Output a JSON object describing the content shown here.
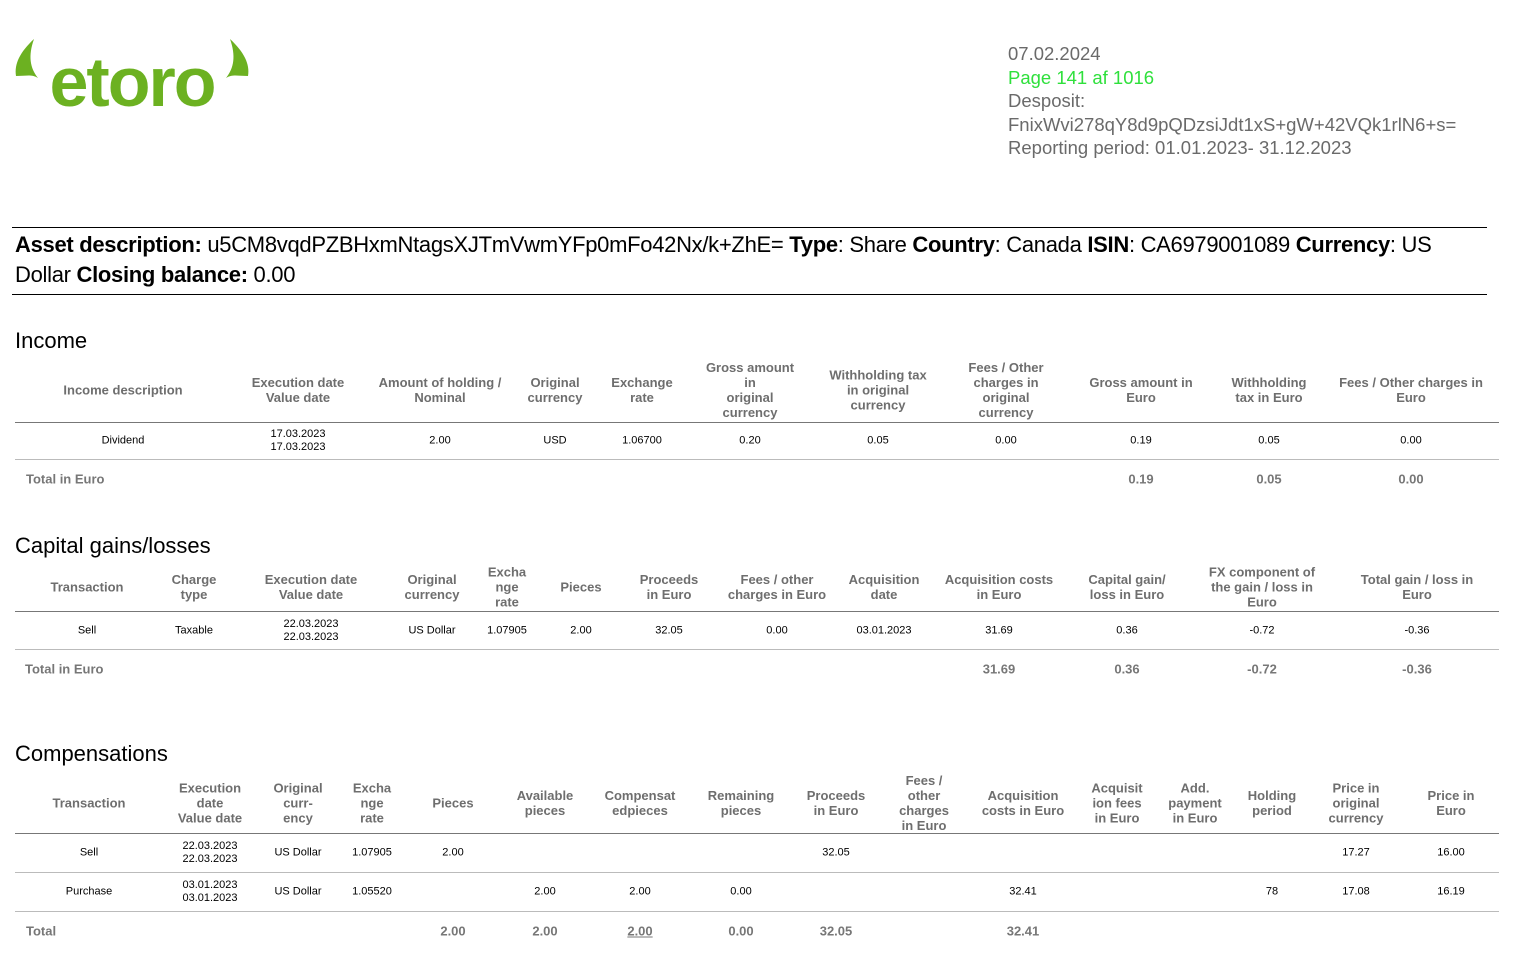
{
  "logo": {
    "text": "eToro",
    "color": "#6cb121"
  },
  "header": {
    "date": "07.02.2024",
    "page": "Page 141 af 1016",
    "page_color": "#2fe03c",
    "deposit_label": "Desposit:",
    "deposit_value": "FnixWvi278qY8d9pQDzsiJdt1xS+gW+42VQk1rlN6+s=",
    "reporting_period": "Reporting period: 01.01.2023- 31.12.2023"
  },
  "asset": {
    "desc_label": "Asset description:",
    "desc_value": " u5CM8vqdPZBHxmNtagsXJTmVwmYFp0mFo42Nx/k+ZhE= ",
    "type_label": "Type",
    "type_value": ": Share ",
    "country_label": "Country",
    "country_value": ": Canada ",
    "isin_label": "ISIN",
    "isin_value": ": CA6979001089 ",
    "currency_label": "Currency",
    "currency_value": ": US Dollar ",
    "closing_label": "Closing balance:",
    "closing_value": " 0.00"
  },
  "income": {
    "title": "Income",
    "headers": [
      "Income description",
      "Execution date\nValue date",
      "Amount of holding /\nNominal",
      "Original\ncurrency",
      "Exchange\nrate",
      "Gross amount\nin\noriginal\ncurrency",
      "Withholding tax\nin original\ncurrency",
      "Fees / Other\ncharges in\noriginal\ncurrency",
      "Gross amount in\nEuro",
      "Withholding\ntax in Euro",
      "Fees / Other charges in\nEuro"
    ],
    "rows": [
      [
        "Dividend",
        "17.03.2023\n17.03.2023",
        "2.00",
        "USD",
        "1.06700",
        "0.20",
        "0.05",
        "0.00",
        "0.19",
        "0.05",
        "0.00"
      ]
    ],
    "total": [
      "Total in Euro",
      "",
      "",
      "",
      "",
      "",
      "",
      "",
      "0.19",
      "0.05",
      "0.00"
    ]
  },
  "capital": {
    "title": "Capital gains/losses",
    "headers": [
      "Transaction",
      "Charge\ntype",
      "Execution date\nValue date",
      "Original\ncurrency",
      "Excha\nnge\nrate",
      "Pieces",
      "Proceeds\nin Euro",
      "Fees / other\ncharges in Euro",
      "Acquisition\ndate",
      "Acquisition costs\nin Euro",
      "Capital gain/\nloss in Euro",
      "FX component of\nthe gain / loss in\nEuro",
      "Total gain / loss in\nEuro"
    ],
    "rows": [
      [
        "Sell",
        "Taxable",
        "22.03.2023\n22.03.2023",
        "US Dollar",
        "1.07905",
        "2.00",
        "32.05",
        "0.00",
        "03.01.2023",
        "31.69",
        "0.36",
        "-0.72",
        "-0.36"
      ]
    ],
    "total": [
      "Total in Euro",
      "",
      "",
      "",
      "",
      "",
      "",
      "",
      "",
      "31.69",
      "0.36",
      "-0.72",
      "-0.36"
    ]
  },
  "compensations": {
    "title": "Compensations",
    "headers": [
      "Transaction",
      "Execution\ndate\nValue date",
      "Original\ncurr-\nency",
      "Excha\nnge\nrate",
      "Pieces",
      "Available\npieces",
      "Compensat\nedpieces",
      "Remaining\npieces",
      "Proceeds\nin Euro",
      "Fees /\nother\ncharges\nin Euro",
      "Acquisition\ncosts in Euro",
      "Acquisit\nion fees\nin Euro",
      "Add.\npayment\nin Euro",
      "Holding\nperiod",
      "Price in\noriginal\ncurrency",
      "Price in\nEuro"
    ],
    "rows": [
      [
        "Sell",
        "22.03.2023\n22.03.2023",
        "US Dollar",
        "1.07905",
        "2.00",
        "",
        "",
        "",
        "32.05",
        "",
        "",
        "",
        "",
        "",
        "17.27",
        "16.00"
      ],
      [
        "Purchase",
        "03.01.2023\n03.01.2023",
        "US Dollar",
        "1.05520",
        "",
        "2.00",
        "2.00",
        "0.00",
        "",
        "",
        "32.41",
        "",
        "",
        "78",
        "17.08",
        "16.19"
      ]
    ],
    "total": [
      "Total",
      "",
      "",
      "",
      "2.00",
      "2.00",
      "2.00",
      "0.00",
      "32.05",
      "",
      "32.41",
      "",
      "",
      "",
      "",
      ""
    ],
    "underlined_total_index": 6
  }
}
